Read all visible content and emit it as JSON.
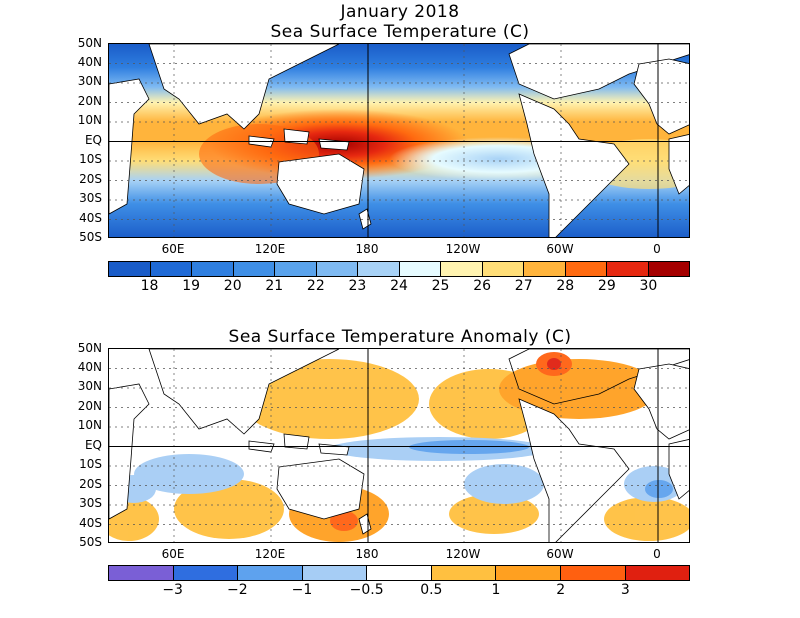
{
  "header": {
    "title_line1": "January 2018",
    "title_line2": "Sea Surface Temperature (C)",
    "title_anom": "Sea Surface Temperature Anomaly (C)"
  },
  "axes": {
    "lat_labels": [
      "50N",
      "40N",
      "30N",
      "20N",
      "10N",
      "EQ",
      "10S",
      "20S",
      "30S",
      "40S",
      "50S"
    ],
    "lon_labels": [
      "60E",
      "120E",
      "180",
      "120W",
      "60W",
      "0"
    ]
  },
  "sst_scale": {
    "labels": [
      "18",
      "19",
      "20",
      "21",
      "22",
      "23",
      "24",
      "25",
      "26",
      "27",
      "28",
      "29",
      "30"
    ],
    "colors": [
      "#1a5cc8",
      "#1f6ad6",
      "#2f7fe0",
      "#3f8fe6",
      "#5aa3ec",
      "#7fbaf2",
      "#a8d2f6",
      "#e6fbff",
      "#fff3b0",
      "#ffde78",
      "#ffb43c",
      "#ff6a10",
      "#e62810",
      "#a50000"
    ]
  },
  "anom_scale": {
    "labels": [
      "−3",
      "−2",
      "−1",
      "−0.5",
      "0.5",
      "1",
      "2",
      "3"
    ],
    "colors": [
      "#7a5fd6",
      "#2f6ee0",
      "#5ea2ee",
      "#a6cdf5",
      "#ffffff",
      "#ffc040",
      "#ffa020",
      "#ff6010",
      "#e02010"
    ]
  }
}
